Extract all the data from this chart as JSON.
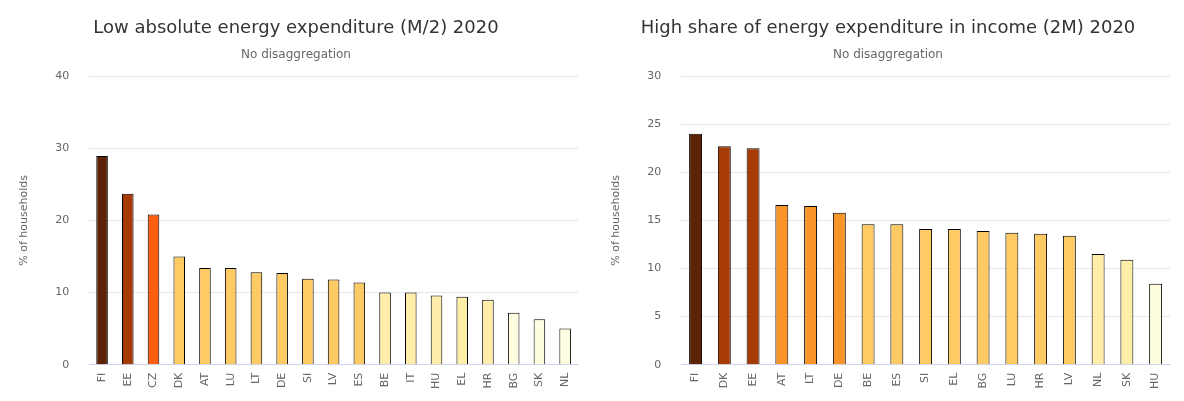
{
  "chart_data": [
    {
      "type": "bar",
      "title": "Low absolute energy expenditure (M/2) 2020",
      "subtitle": "No disaggregation",
      "ylabel": "% of households",
      "categories": [
        "FI",
        "EE",
        "CZ",
        "DK",
        "AT",
        "LU",
        "LT",
        "DE",
        "SI",
        "LV",
        "ES",
        "BE",
        "IT",
        "HU",
        "EL",
        "HR",
        "BG",
        "SK",
        "NL"
      ],
      "values": [
        28.9,
        23.7,
        20.8,
        15.0,
        13.4,
        13.4,
        12.8,
        12.7,
        11.9,
        11.8,
        11.4,
        10.0,
        10.0,
        9.6,
        9.4,
        9.0,
        7.2,
        6.3,
        5.0
      ],
      "colors": [
        "#5c2306",
        "#a63b06",
        "#fc5f0e",
        "#fdca63",
        "#fdca63",
        "#fdca63",
        "#fdca63",
        "#fdca63",
        "#fdca63",
        "#fdca63",
        "#fdca63",
        "#feeeaa",
        "#feeeaa",
        "#feeeaa",
        "#feeeaa",
        "#feeeaa",
        "#fffde0",
        "#fffde0",
        "#fffde0"
      ],
      "ylim": [
        0,
        40
      ],
      "yticks": [
        0,
        10,
        20,
        30,
        40
      ],
      "grid": "y"
    },
    {
      "type": "bar",
      "title": "High share of energy expenditure in income (2M) 2020",
      "subtitle": "No disaggregation",
      "ylabel": "% of households",
      "categories": [
        "FI",
        "DK",
        "EE",
        "AT",
        "LT",
        "DE",
        "BE",
        "ES",
        "SI",
        "EL",
        "BG",
        "LU",
        "HR",
        "LV",
        "NL",
        "SK",
        "HU"
      ],
      "values": [
        24.0,
        22.7,
        22.5,
        16.6,
        16.5,
        15.8,
        14.6,
        14.6,
        14.1,
        14.1,
        13.9,
        13.7,
        13.6,
        13.4,
        11.5,
        10.9,
        8.4
      ],
      "colors": [
        "#5c2306",
        "#a63b06",
        "#a63b06",
        "#f8952a",
        "#f8952a",
        "#f8952a",
        "#fdca63",
        "#fdca63",
        "#fdca63",
        "#fdca63",
        "#fdca63",
        "#fdca63",
        "#fdca63",
        "#fdca63",
        "#feeeaa",
        "#feeeaa",
        "#fffde0"
      ],
      "ylim": [
        0,
        30
      ],
      "yticks": [
        0,
        5,
        10,
        15,
        20,
        25,
        30
      ],
      "grid": "y"
    }
  ]
}
